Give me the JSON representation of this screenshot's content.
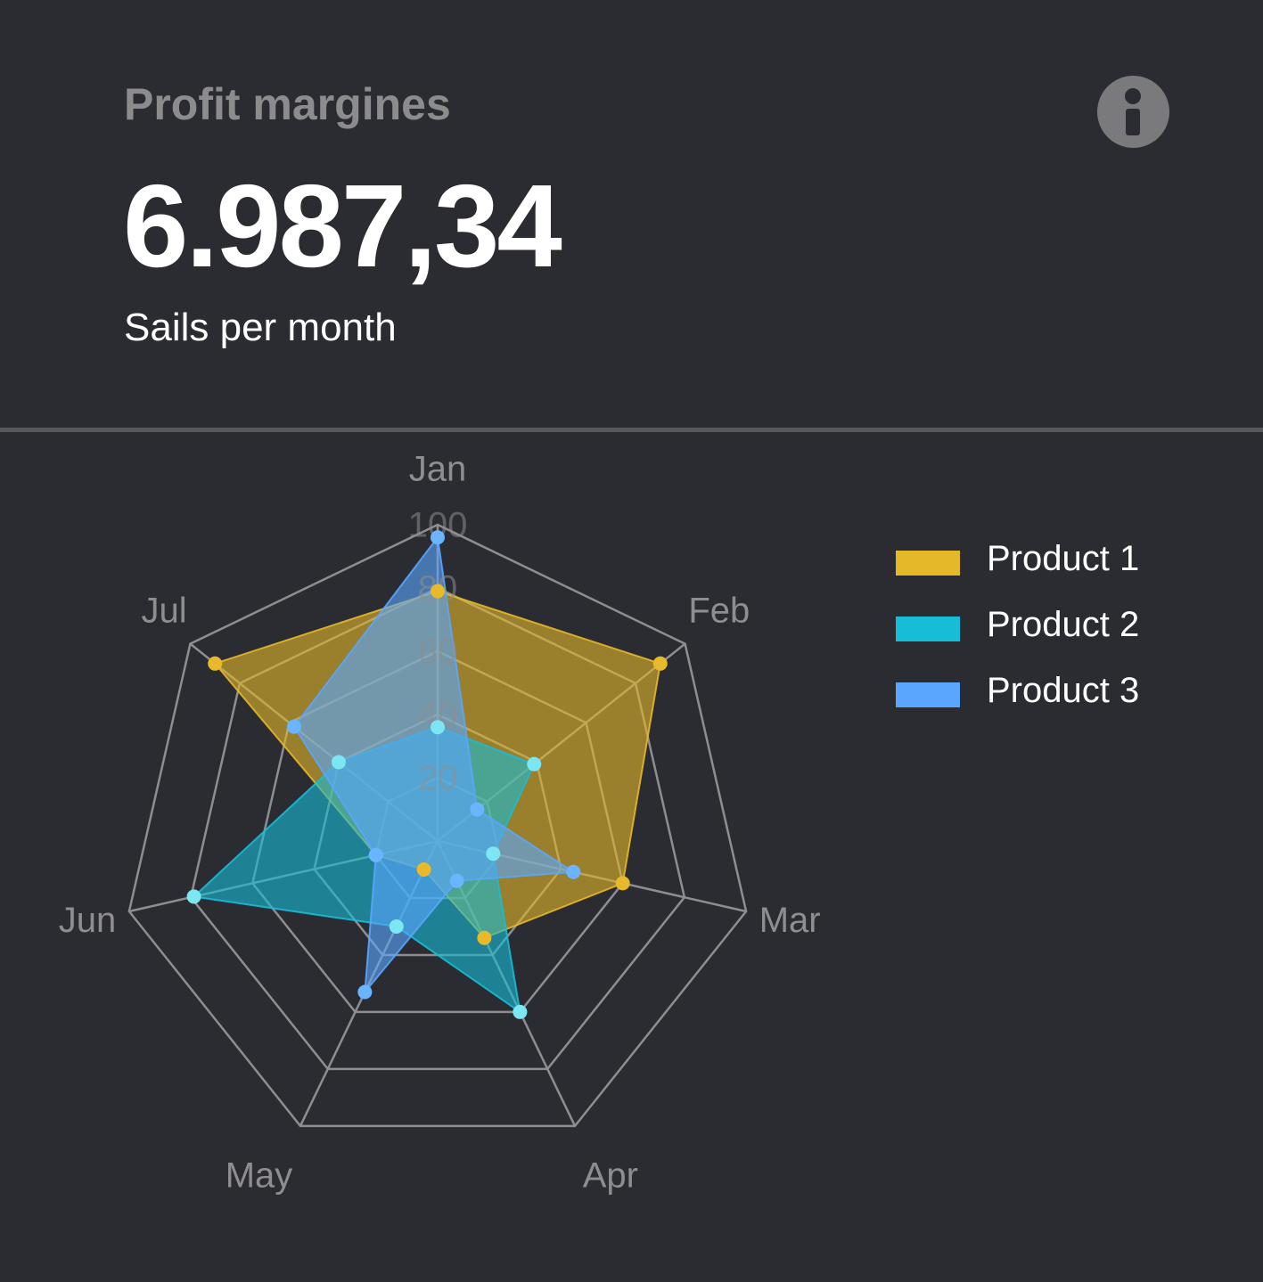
{
  "card": {
    "title": "Profit margines",
    "value": "6.987,34",
    "subtitle": "Sails per month",
    "info_icon": "info-icon"
  },
  "colors": {
    "background": "#2b2c32",
    "grid": "#8e8e90",
    "label": "#8e8e90"
  },
  "chart_data": {
    "type": "radar",
    "categories": [
      "Jan",
      "Feb",
      "Mar",
      "Apr",
      "May",
      "Jun",
      "Jul"
    ],
    "r_ticks": [
      "20",
      "40",
      "60",
      "80",
      "100"
    ],
    "rlim": [
      0,
      100
    ],
    "grid": true,
    "legend_position": "right",
    "series": [
      {
        "name": "Product 1",
        "values": [
          79,
          90,
          60,
          34,
          10,
          20,
          90
        ],
        "fill": "#e5b82a",
        "point": "#e8b92a"
      },
      {
        "name": "Product 2",
        "values": [
          36,
          39,
          18,
          60,
          30,
          79,
          40
        ],
        "fill": "#17bcd6",
        "point": "#7de6f3"
      },
      {
        "name": "Product 3",
        "values": [
          96,
          16,
          44,
          14,
          53,
          20,
          58
        ],
        "fill": "#5aa6ff",
        "point": "#6bb4ff"
      }
    ]
  }
}
